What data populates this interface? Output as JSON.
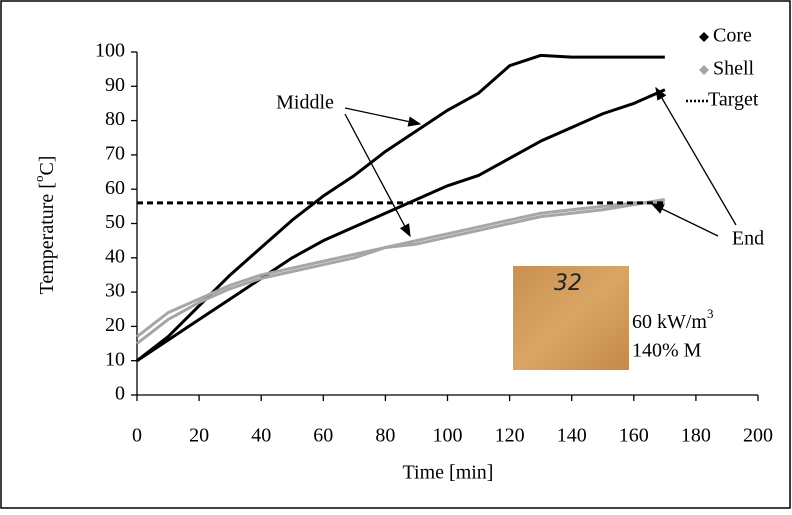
{
  "chart_data": {
    "type": "line",
    "x": [
      0,
      10,
      20,
      30,
      40,
      50,
      60,
      70,
      80,
      90,
      100,
      110,
      120,
      130,
      140,
      150,
      160,
      170
    ],
    "series": [
      {
        "name": "Core",
        "color": "#000000",
        "values": [
          [
            10,
            17,
            26,
            35,
            43,
            51,
            58,
            64,
            71,
            77,
            83,
            88,
            96,
            99,
            98.5,
            98.5,
            98.5,
            98.5
          ],
          [
            10,
            16,
            22,
            28,
            34,
            40,
            45,
            49,
            53,
            57,
            61,
            64,
            69,
            74,
            78,
            82,
            85,
            89
          ]
        ]
      },
      {
        "name": "Shell",
        "color": "#a6a6a6",
        "values": [
          [
            17,
            24,
            28,
            32,
            35,
            37,
            39,
            41,
            43,
            44,
            46,
            48,
            50,
            52,
            53,
            54,
            55.5,
            57
          ],
          [
            15,
            22,
            27,
            31,
            34,
            36,
            38,
            40,
            43,
            45,
            47,
            49,
            51,
            53,
            54,
            55,
            56,
            56
          ]
        ]
      }
    ],
    "target": {
      "name": "Target",
      "value": 56,
      "xrange": [
        0,
        170
      ]
    },
    "xlabel": "Time [min]",
    "ylabel": [
      "Temperature [",
      "o",
      "C]"
    ],
    "xlim": [
      0,
      200
    ],
    "xticks": [
      0,
      20,
      40,
      60,
      80,
      100,
      120,
      140,
      160,
      180,
      200
    ],
    "ylim": [
      0,
      100
    ],
    "yticks": [
      0,
      10,
      20,
      30,
      40,
      50,
      60,
      70,
      80,
      90,
      100
    ],
    "annotations": [
      "Middle",
      "End"
    ],
    "inset": {
      "photo_label": "32",
      "lines": [
        [
          "60 kW/m",
          "3"
        ],
        [
          "140% M"
        ]
      ]
    }
  }
}
